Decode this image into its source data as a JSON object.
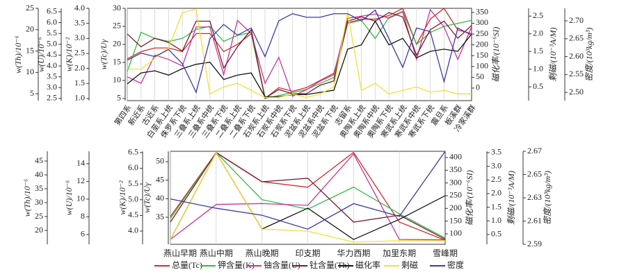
{
  "chart_data": [
    {
      "type": "line",
      "grid": true,
      "categories": [
        "第四系",
        "新近系",
        "古近系",
        "白垩系上统",
        "侏罗系下统",
        "三叠系上统",
        "三叠系中统",
        "三叠系下统",
        "二叠系上统",
        "二叠系下统",
        "石炭系上统",
        "石炭系中统",
        "石炭系下统",
        "泥盆系上统",
        "泥盆系中统",
        "泥盆系下统",
        "志留系",
        "奥陶系上统",
        "奥陶系中统",
        "奥陶系下统",
        "寒武系上统",
        "寒武系中统",
        "寒武系下统",
        "震旦系",
        "板溪群",
        "冷家溪群"
      ],
      "axes": [
        {
          "label": "w(Th)/10⁻⁶",
          "ylim": [
            3.4,
            25
          ],
          "yticks": [
            5,
            10,
            15,
            20,
            25
          ]
        },
        {
          "label": "w(U)/10⁻⁶",
          "ylim": [
            2.4,
            6.66
          ],
          "yticks": [
            2.5,
            {
              "value": 3,
              "label": "3.0"
            },
            3.5,
            {
              "value": 4,
              "label": "4.0"
            },
            4.5,
            {
              "value": 5,
              "label": "5.0"
            },
            5.5,
            {
              "value": 6,
              "label": "6.0"
            },
            6.5
          ]
        },
        {
          "label": "w(K)/10⁻²",
          "ylim": [
            0.93,
            4.0
          ],
          "yticks": [
            {
              "value": 1,
              "label": "1.0"
            },
            1.5,
            {
              "value": 2,
              "label": "2.0"
            },
            2.5,
            {
              "value": 3,
              "label": "3.0"
            },
            3.5,
            {
              "value": 4,
              "label": "4.0"
            }
          ]
        },
        {
          "label": "w(Tc)/Uγ",
          "ylim": [
            4.4,
            30
          ],
          "yticks": [
            5,
            10,
            15,
            20,
            25,
            30
          ]
        },
        {
          "label": "磁化率/(10⁻⁶SI)",
          "ylim": [
            -58,
            369
          ],
          "yticks": [
            0,
            50,
            100,
            150,
            200,
            250,
            300,
            350
          ]
        },
        {
          "label": "剩磁/(10⁻³A/M)",
          "ylim": [
            0.11,
            2.72
          ],
          "yticks": [
            0.5,
            {
              "value": 1,
              "label": "1.0"
            },
            1.5,
            {
              "value": 2,
              "label": "2.0"
            },
            2.5
          ]
        },
        {
          "label": "密度/(10³kg/m³)",
          "ylim": [
            2.477,
            2.735
          ],
          "yticks": [
            {
              "value": 2.5,
              "label": "2.50"
            },
            2.55,
            {
              "value": 2.6,
              "label": "2.60"
            },
            2.65,
            {
              "value": 2.7,
              "label": "2.70"
            }
          ]
        }
      ],
      "series": [
        {
          "color": "#d42a2a",
          "axis": 3,
          "values": [
            16,
            18,
            19,
            19,
            18,
            23,
            23,
            18,
            20,
            23,
            5,
            8,
            7,
            8,
            10,
            12,
            26,
            27,
            27,
            28,
            30,
            20,
            27,
            30,
            24,
            23
          ]
        },
        {
          "color": "#33bb44",
          "axis": 2,
          "values": [
            1.9,
            3.2,
            3.0,
            2.9,
            3.0,
            3.3,
            3.4,
            2.9,
            3.1,
            3.2,
            1.0,
            1.1,
            1.2,
            1.3,
            1.5,
            1.7,
            3.5,
            3.6,
            3.0,
            3.7,
            3.9,
            2.8,
            3.2,
            3.4,
            3.5,
            3.6
          ]
        },
        {
          "color": "#cc3399",
          "axis": 1,
          "values": [
            3.5,
            3.2,
            4.5,
            4.3,
            4.0,
            5.8,
            5.8,
            3.6,
            6.1,
            5.5,
            3.2,
            4.4,
            2.6,
            2.9,
            3.3,
            3.6,
            6.2,
            6.3,
            6.4,
            6.2,
            6.5,
            4.3,
            6.6,
            5.8,
            4.3,
            5.8
          ]
        },
        {
          "color": "#7a1a2a",
          "axis": 0,
          "values": [
            19,
            16,
            18,
            17,
            15,
            22,
            22,
            11,
            16,
            20,
            4,
            6,
            5,
            5,
            7,
            8,
            22,
            23,
            22,
            24,
            23,
            14,
            20,
            22,
            18,
            21
          ]
        },
        {
          "color": "#111111",
          "axis": 4,
          "values": [
            20,
            70,
            80,
            60,
            90,
            110,
            120,
            40,
            60,
            70,
            -40,
            -40,
            -30,
            -30,
            -20,
            -10,
            180,
            200,
            310,
            200,
            230,
            140,
            170,
            180,
            170,
            250
          ]
        },
        {
          "color": "#f2e030",
          "axis": 5,
          "values": [
            1.0,
            1.0,
            1.3,
            1.6,
            2.6,
            2.7,
            0.3,
            0.5,
            0.6,
            0.4,
            0.2,
            0.2,
            0.3,
            0.2,
            0.3,
            0.5,
            2.6,
            0.4,
            0.6,
            0.3,
            0.4,
            0.5,
            0.35,
            0.4,
            0.3,
            0.3
          ]
        },
        {
          "color": "#3a3aa8",
          "axis": 6,
          "values": [
            2.59,
            2.61,
            2.6,
            2.62,
            2.58,
            2.5,
            2.65,
            2.69,
            2.66,
            2.68,
            2.6,
            2.7,
            2.72,
            2.71,
            2.71,
            2.72,
            2.72,
            2.7,
            2.73,
            2.65,
            2.57,
            2.68,
            2.67,
            2.53,
            2.68,
            2.66
          ]
        }
      ]
    },
    {
      "type": "line",
      "grid": true,
      "categories": [
        "燕山早期",
        "燕山中期",
        "燕山晚期",
        "印支期",
        "华力西期",
        "加里东期",
        "雪峰期"
      ],
      "axes": [
        {
          "label": "w(Th)/10⁻⁶",
          "ylim": [
            15,
            48.5
          ],
          "yticks": [
            20,
            25,
            30,
            35,
            40,
            45
          ]
        },
        {
          "label": "w(U)/10⁻⁶",
          "ylim": [
            4.9,
            15.4
          ],
          "yticks": [
            6,
            8,
            10,
            12,
            14
          ]
        },
        {
          "label": "w(K)/10⁻²",
          "ylim": [
            3.58,
            6.54
          ],
          "yticks": [
            {
              "value": 4,
              "label": "4.0"
            },
            4.5,
            {
              "value": 5,
              "label": "5.0"
            },
            5.5,
            {
              "value": 6,
              "label": "6.0"
            },
            6.5
          ]
        },
        {
          "label": "w(Tc)/Uγ",
          "ylim": [
            27.7,
            52.8
          ],
          "yticks": [
            35,
            40,
            45,
            50
          ]
        },
        {
          "label": "磁化率/(10⁻⁶SI)",
          "ylim": [
            59,
            424.5
          ],
          "yticks": [
            100,
            150,
            200,
            250,
            300,
            350,
            400
          ]
        },
        {
          "label": "剩磁/(10⁻³A/M)",
          "ylim": [
            0.14,
            3.55
          ],
          "yticks": [
            0.5,
            {
              "value": 1,
              "label": "1.0"
            },
            1.5,
            {
              "value": 2,
              "label": "2.0"
            },
            2.5,
            {
              "value": 3,
              "label": "3.0"
            },
            3.5
          ]
        },
        {
          "label": "密度/(10³kg/m³)",
          "ylim": [
            2.59,
            2.67
          ],
          "yticks": [
            2.59,
            2.61,
            2.63,
            2.65,
            2.67
          ]
        }
      ],
      "series": [
        {
          "name": "总量(Tc)",
          "color": "#d42a2a",
          "axis": 3,
          "values": [
            35.2,
            52.5,
            44.6,
            43.1,
            52.5,
            33.7,
            28.8
          ]
        },
        {
          "name": "钾含量(K)",
          "color": "#33bb44",
          "axis": 2,
          "values": [
            4.4,
            6.5,
            5.0,
            4.7,
            5.4,
            4.55,
            3.78
          ]
        },
        {
          "name": "铀含量(U)",
          "color": "#cc3399",
          "axis": 1,
          "values": [
            5.45,
            9.4,
            9.5,
            9.3,
            15.1,
            5.45,
            5.4
          ]
        },
        {
          "name": "钍含量(Th)",
          "color": "#7a1a2a",
          "axis": 0,
          "values": [
            23,
            48,
            37.5,
            38.8,
            23,
            25.5,
            16.8
          ]
        },
        {
          "name": "磁化率",
          "color": "#111111",
          "axis": 4,
          "values": [
            78,
            419,
            119,
            201,
            78,
            157,
            250
          ]
        },
        {
          "name": "剩磁",
          "color": "#f2e030",
          "axis": 5,
          "values": [
            0.32,
            3.5,
            0.7,
            0.62,
            0.22,
            0.27,
            0.27
          ]
        },
        {
          "name": "密度",
          "color": "#3a3aa8",
          "axis": 6,
          "values": [
            2.629,
            2.621,
            2.615,
            2.603,
            2.625,
            2.614,
            2.67
          ]
        }
      ]
    }
  ]
}
